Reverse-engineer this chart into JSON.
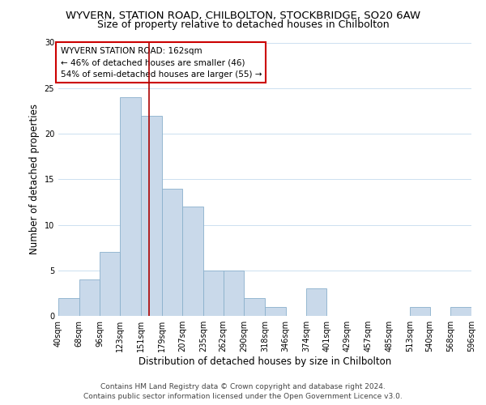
{
  "title": "WYVERN, STATION ROAD, CHILBOLTON, STOCKBRIDGE, SO20 6AW",
  "subtitle": "Size of property relative to detached houses in Chilbolton",
  "xlabel": "Distribution of detached houses by size in Chilbolton",
  "ylabel": "Number of detached properties",
  "bin_edges": [
    40,
    68,
    96,
    123,
    151,
    179,
    207,
    235,
    262,
    290,
    318,
    346,
    374,
    401,
    429,
    457,
    485,
    513,
    540,
    568,
    596
  ],
  "bin_counts": [
    2,
    4,
    7,
    24,
    22,
    14,
    12,
    5,
    5,
    2,
    1,
    0,
    3,
    0,
    0,
    0,
    0,
    1,
    0,
    1
  ],
  "tick_labels": [
    "40sqm",
    "68sqm",
    "96sqm",
    "123sqm",
    "151sqm",
    "179sqm",
    "207sqm",
    "235sqm",
    "262sqm",
    "290sqm",
    "318sqm",
    "346sqm",
    "374sqm",
    "401sqm",
    "429sqm",
    "457sqm",
    "485sqm",
    "513sqm",
    "540sqm",
    "568sqm",
    "596sqm"
  ],
  "bar_color": "#c9d9ea",
  "bar_edge_color": "#8ab0cc",
  "property_line_x": 162,
  "property_line_color": "#aa0000",
  "annotation_box_edge_color": "#cc0000",
  "annotation_line1": "WYVERN STATION ROAD: 162sqm",
  "annotation_line2": "← 46% of detached houses are smaller (46)",
  "annotation_line3": "54% of semi-detached houses are larger (55) →",
  "ylim": [
    0,
    30
  ],
  "yticks": [
    0,
    5,
    10,
    15,
    20,
    25,
    30
  ],
  "footer_line1": "Contains HM Land Registry data © Crown copyright and database right 2024.",
  "footer_line2": "Contains public sector information licensed under the Open Government Licence v3.0.",
  "title_fontsize": 9.5,
  "subtitle_fontsize": 9,
  "axis_label_fontsize": 8.5,
  "tick_fontsize": 7,
  "annotation_fontsize": 7.5,
  "footer_fontsize": 6.5
}
